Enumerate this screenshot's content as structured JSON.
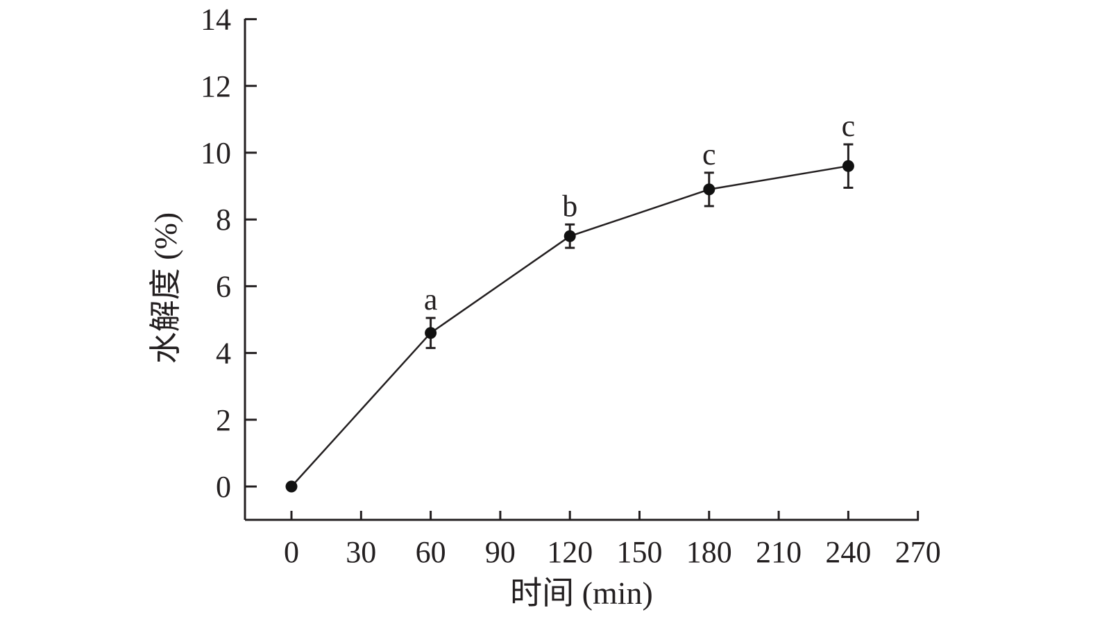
{
  "chart_data": {
    "type": "line",
    "xlabel": "时间 (min)",
    "ylabel": "水解度 (%)",
    "x_ticks": [
      "0",
      "30",
      "60",
      "90",
      "120",
      "150",
      "180",
      "210",
      "240",
      "270"
    ],
    "y_ticks": [
      "0",
      "2",
      "4",
      "6",
      "8",
      "10",
      "12",
      "14"
    ],
    "xlim": [
      -20,
      270
    ],
    "ylim": [
      -1,
      14
    ],
    "grid": false,
    "legend": "none",
    "series": [
      {
        "x": [
          0,
          60,
          120,
          180,
          240
        ],
        "y": [
          0,
          4.6,
          7.5,
          8.9,
          9.6
        ],
        "error": [
          0,
          0.45,
          0.35,
          0.5,
          0.65
        ],
        "labels": [
          "",
          "a",
          "b",
          "c",
          "c"
        ]
      }
    ],
    "colors": {
      "line": "#231f20",
      "marker": "#111111"
    }
  }
}
